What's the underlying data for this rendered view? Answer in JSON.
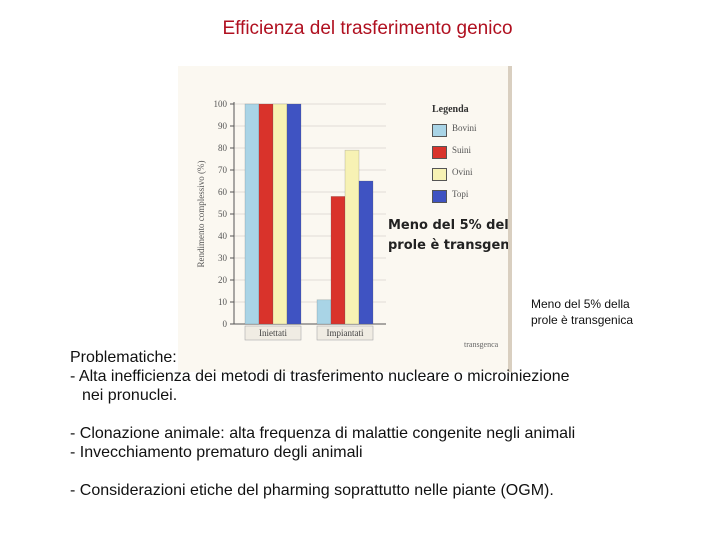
{
  "slide": {
    "title": "Efficienza del trasferimento genico",
    "caption_lines": [
      "Meno del 5% della",
      "prole è transgenica"
    ]
  },
  "figure": {
    "callout_lines": [
      "Meno del 5% del",
      "prole è transgen"
    ],
    "below_text": "transgenca"
  },
  "chart_data": {
    "type": "bar",
    "title": "",
    "xlabel": "",
    "ylabel": "Rendimento complessivo (%)",
    "categories": [
      "Iniettati",
      "Impiantati"
    ],
    "series": [
      {
        "name": "Bovini",
        "color": "#a9d4e6",
        "values": [
          100,
          11
        ]
      },
      {
        "name": "Suini",
        "color": "#d9332b",
        "values": [
          100,
          58
        ]
      },
      {
        "name": "Ovini",
        "color": "#f7f2b4",
        "values": [
          100,
          79
        ]
      },
      {
        "name": "Topi",
        "color": "#3f53c2",
        "values": [
          100,
          65
        ]
      }
    ],
    "ylim": [
      0,
      100
    ],
    "yticks": [
      0,
      10,
      20,
      30,
      40,
      50,
      60,
      70,
      80,
      90,
      100
    ],
    "grid": true,
    "legend_title": "Legenda",
    "legend_position": "right"
  },
  "body": {
    "problems_heading": "Problematiche:",
    "line1": "- Alta inefficienza dei metodi di trasferimento nucleare o microiniezione",
    "line1_cont": "nei pronuclei.",
    "line2": "- Clonazione animale: alta frequenza di malattie congenite negli animali",
    "line3": "- Invecchiamento prematuro degli animali",
    "line4": "- Considerazioni etiche del pharming soprattutto nelle piante (OGM)."
  }
}
